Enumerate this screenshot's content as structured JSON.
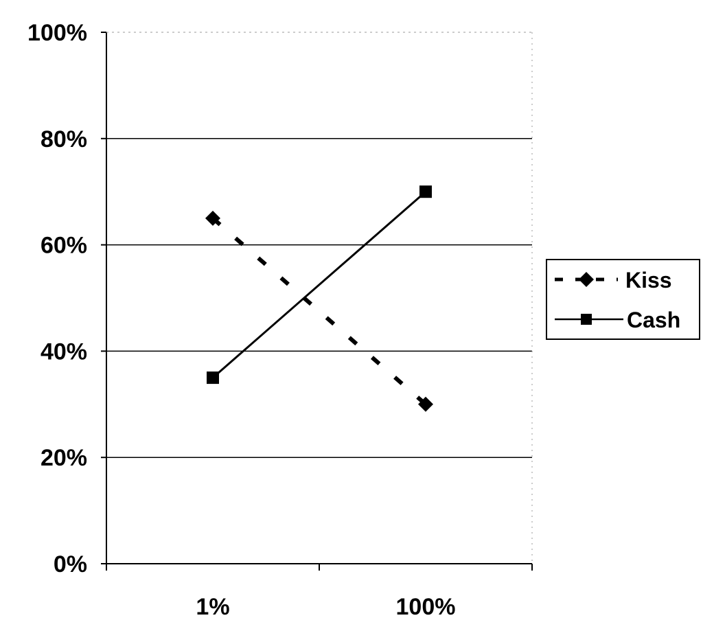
{
  "chart_data": {
    "type": "line",
    "title": "",
    "xlabel": "",
    "ylabel": "",
    "categories": [
      "1%",
      "100%"
    ],
    "ylim": [
      0,
      100
    ],
    "y_ticks": [
      "0%",
      "20%",
      "40%",
      "60%",
      "80%",
      "100%"
    ],
    "y_tick_values": [
      0,
      20,
      40,
      60,
      80,
      100
    ],
    "grid": true,
    "legend_position": "right",
    "series": [
      {
        "name": "Kiss",
        "values": [
          65,
          30
        ],
        "line_style": "dashed",
        "marker": "diamond",
        "color": "#000000"
      },
      {
        "name": "Cash",
        "values": [
          35,
          70
        ],
        "line_style": "solid",
        "marker": "square",
        "color": "#000000"
      }
    ]
  }
}
